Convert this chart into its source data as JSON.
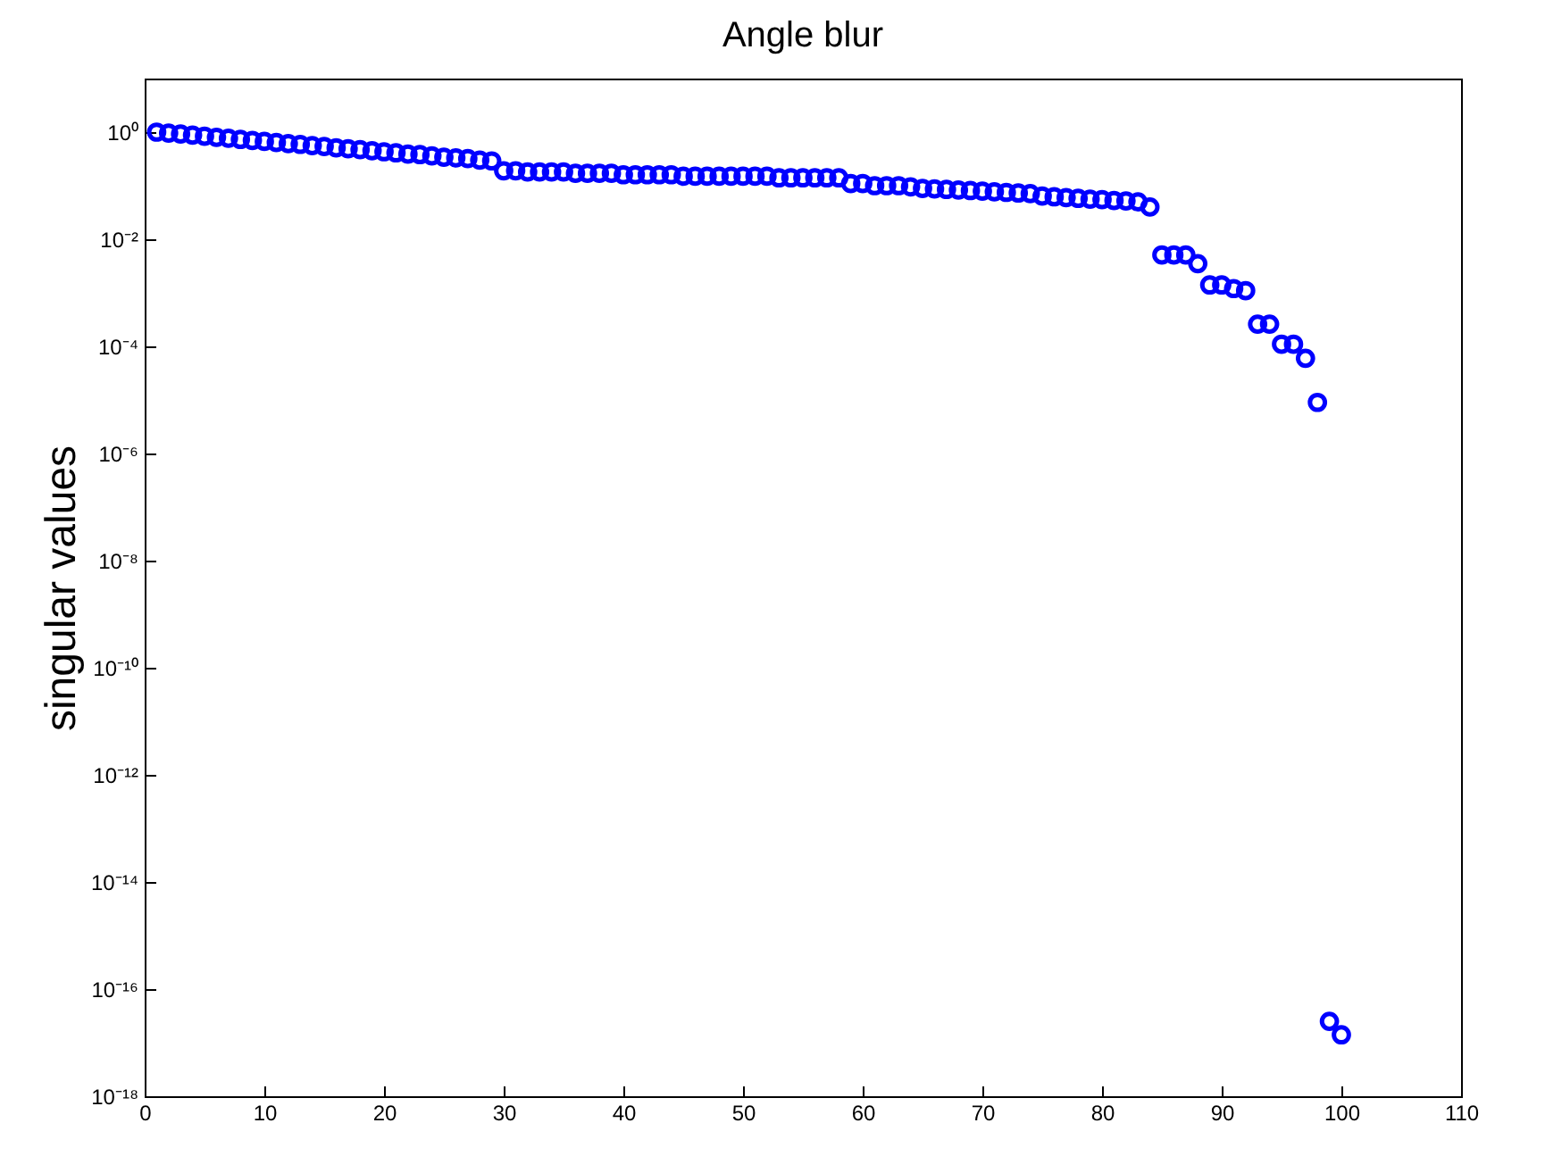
{
  "chart_data": {
    "type": "scatter",
    "title": "Angle blur",
    "ylabel": "singular values",
    "log": "y",
    "marker": "circle",
    "grid": false,
    "x": [
      1,
      2,
      3,
      4,
      5,
      6,
      7,
      8,
      9,
      10,
      11,
      12,
      13,
      14,
      15,
      16,
      17,
      18,
      19,
      20,
      21,
      22,
      23,
      24,
      25,
      26,
      27,
      28,
      29,
      30,
      31,
      32,
      33,
      34,
      35,
      36,
      37,
      38,
      39,
      40,
      41,
      42,
      43,
      44,
      45,
      46,
      47,
      48,
      49,
      50,
      51,
      52,
      53,
      54,
      55,
      56,
      57,
      58,
      59,
      60,
      61,
      62,
      63,
      64,
      65,
      66,
      67,
      68,
      69,
      70,
      71,
      72,
      73,
      74,
      75,
      76,
      77,
      78,
      79,
      80,
      81,
      82,
      83,
      84,
      85,
      86,
      87,
      88,
      89,
      90,
      91,
      92,
      93,
      94,
      95,
      96,
      97,
      98,
      99,
      100
    ],
    "series": [
      {
        "color": "#0000ff",
        "values": [
          1.0,
          0.96,
          0.92,
          0.88,
          0.84,
          0.8,
          0.77,
          0.73,
          0.7,
          0.67,
          0.64,
          0.61,
          0.59,
          0.56,
          0.54,
          0.51,
          0.49,
          0.47,
          0.45,
          0.43,
          0.41,
          0.39,
          0.38,
          0.36,
          0.34,
          0.33,
          0.32,
          0.3,
          0.29,
          0.19,
          0.19,
          0.18,
          0.18,
          0.18,
          0.18,
          0.17,
          0.17,
          0.17,
          0.17,
          0.16,
          0.16,
          0.16,
          0.16,
          0.16,
          0.15,
          0.15,
          0.15,
          0.15,
          0.15,
          0.15,
          0.15,
          0.15,
          0.14,
          0.14,
          0.14,
          0.14,
          0.14,
          0.14,
          0.11,
          0.11,
          0.1,
          0.1,
          0.1,
          0.095,
          0.089,
          0.087,
          0.085,
          0.083,
          0.081,
          0.079,
          0.077,
          0.075,
          0.073,
          0.071,
          0.064,
          0.062,
          0.06,
          0.058,
          0.056,
          0.055,
          0.053,
          0.052,
          0.05,
          0.04,
          0.0051,
          0.0051,
          0.0051,
          0.0035,
          0.0014,
          0.0014,
          0.0012,
          0.0011,
          0.00026,
          0.00026,
          0.00011,
          0.00011,
          6e-05,
          9e-06,
          2.5e-17,
          1.4e-17
        ]
      }
    ],
    "xlim": [
      0,
      110
    ],
    "xticks": [
      0,
      10,
      20,
      30,
      40,
      50,
      60,
      70,
      80,
      90,
      100,
      110
    ],
    "ylim": [
      1e-18,
      10
    ],
    "yticks": [
      {
        "value": 1e-18,
        "label": "10⁻¹⁸"
      },
      {
        "value": 1e-16,
        "label": "10⁻¹⁶"
      },
      {
        "value": 1e-14,
        "label": "10⁻¹⁴"
      },
      {
        "value": 1e-12,
        "label": "10⁻¹²"
      },
      {
        "value": 1e-10,
        "label": "10⁻¹⁰"
      },
      {
        "value": 1e-08,
        "label": "10⁻⁸"
      },
      {
        "value": 1e-06,
        "label": "10⁻⁶"
      },
      {
        "value": 0.0001,
        "label": "10⁻⁴"
      },
      {
        "value": 0.01,
        "label": "10⁻²"
      },
      {
        "value": 1,
        "label": "10⁰"
      }
    ]
  }
}
